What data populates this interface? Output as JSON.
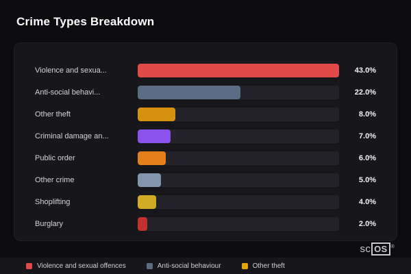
{
  "page": {
    "title": "Crime Types Breakdown"
  },
  "chart_data": {
    "type": "bar",
    "orientation": "horizontal",
    "title": "Crime Types Breakdown",
    "categories": [
      "Violence and sexua...",
      "Anti-social behavi...",
      "Other theft",
      "Criminal damage an...",
      "Public order",
      "Other crime",
      "Shoplifting",
      "Burglary"
    ],
    "values": [
      43.0,
      22.0,
      8.0,
      7.0,
      6.0,
      5.0,
      4.0,
      2.0
    ],
    "value_labels": [
      "43.0%",
      "22.0%",
      "8.0%",
      "7.0%",
      "6.0%",
      "5.0%",
      "4.0%",
      "2.0%"
    ],
    "bar_colors": [
      "#e24a47",
      "#5c6c84",
      "#d6920f",
      "#8a52ec",
      "#e2801c",
      "#8496ab",
      "#d2ab25",
      "#c3302f"
    ],
    "max_value": 43.0,
    "xlim": [
      0,
      43.0
    ],
    "grid": false,
    "legend_position": "bottom"
  },
  "legend": {
    "items": [
      {
        "label": "Violence and sexual offences",
        "color": "#e24a47"
      },
      {
        "label": "Anti-social behaviour",
        "color": "#5c6c84"
      },
      {
        "label": "Other theft",
        "color": "#e5a50a"
      }
    ]
  },
  "branding": {
    "prefix": "sc",
    "suffix": "OS",
    "reg": "®"
  }
}
